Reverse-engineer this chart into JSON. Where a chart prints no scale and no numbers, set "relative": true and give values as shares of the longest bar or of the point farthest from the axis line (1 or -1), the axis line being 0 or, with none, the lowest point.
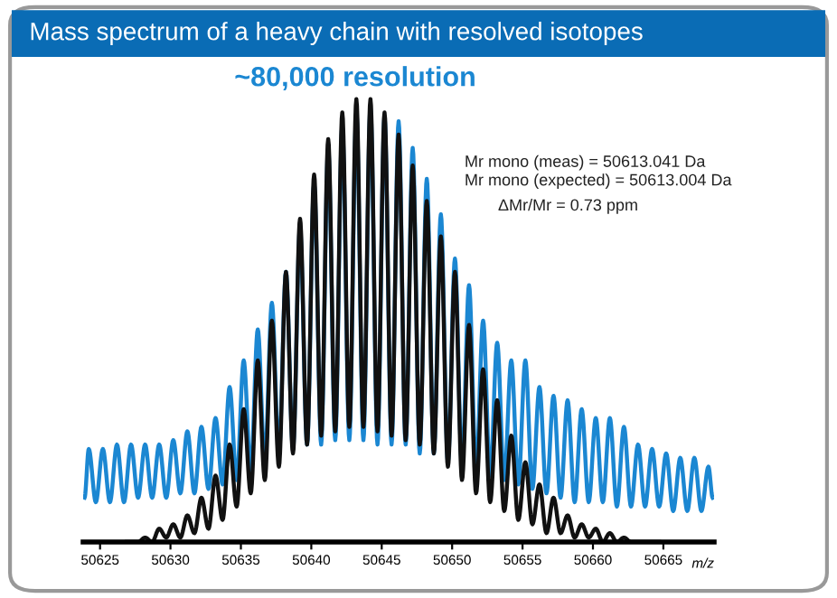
{
  "chart_data": {
    "type": "line",
    "relative": true,
    "title": "Mass spectrum of a heavy chain with resolved isotopes",
    "xlabel": "m/z",
    "annotations": [
      "~80,000 resolution",
      "Mr mono (meas) = 50613.041 Da",
      "Mr mono (expected) = 50613.004 Da",
      "ΔMr/Mr = 0.73 ppm"
    ],
    "xlim": [
      50623.8,
      50668.6
    ],
    "xticks": [
      50625,
      50630,
      50635,
      50640,
      50645,
      50650,
      50655,
      50660,
      50665
    ],
    "tick_labels": "x",
    "grid": false,
    "legend": false,
    "marker": "none",
    "line_style": "solid",
    "series": [
      {
        "color": "#1b87d2",
        "x": [
          50623.9,
          50624.2,
          50624.7,
          50625.2,
          50625.7,
          50626.2,
          50626.7,
          50627.2,
          50627.7,
          50628.2,
          50628.7,
          50629.2,
          50629.7,
          50630.2,
          50630.7,
          50631.2,
          50631.7,
          50632.2,
          50632.7,
          50633.2,
          50633.7,
          50634.2,
          50634.7,
          50635.2,
          50635.7,
          50636.2,
          50636.7,
          50637.2,
          50637.7,
          50638.2,
          50638.7,
          50639.2,
          50639.7,
          50640.2,
          50640.7,
          50641.2,
          50641.7,
          50642.2,
          50642.7,
          50643.2,
          50643.7,
          50644.2,
          50644.7,
          50645.2,
          50645.7,
          50646.2,
          50646.7,
          50647.2,
          50647.7,
          50648.2,
          50648.7,
          50649.2,
          50649.7,
          50650.2,
          50650.7,
          50651.2,
          50651.7,
          50652.2,
          50652.7,
          50653.2,
          50653.7,
          50654.2,
          50654.7,
          50655.2,
          50655.7,
          50656.2,
          50656.7,
          50657.2,
          50657.7,
          50658.2,
          50658.7,
          50659.2,
          50659.7,
          50660.2,
          50660.7,
          50661.2,
          50661.7,
          50662.2,
          50662.7,
          50663.2,
          50663.7,
          50664.2,
          50664.7,
          50665.2,
          50665.7,
          50666.2,
          50666.7,
          50667.2,
          50667.7,
          50668.2,
          50668.5
        ],
        "values": [
          0.1,
          0.21,
          0.09,
          0.21,
          0.09,
          0.22,
          0.09,
          0.22,
          0.1,
          0.22,
          0.1,
          0.22,
          0.1,
          0.23,
          0.11,
          0.25,
          0.11,
          0.26,
          0.12,
          0.28,
          0.13,
          0.35,
          0.14,
          0.41,
          0.16,
          0.48,
          0.18,
          0.54,
          0.2,
          0.61,
          0.21,
          0.71,
          0.22,
          0.81,
          0.22,
          0.89,
          0.23,
          0.94,
          0.23,
          0.97,
          0.23,
          0.98,
          0.22,
          0.96,
          0.22,
          0.95,
          0.22,
          0.89,
          0.2,
          0.82,
          0.2,
          0.74,
          0.18,
          0.64,
          0.17,
          0.58,
          0.16,
          0.5,
          0.15,
          0.45,
          0.14,
          0.41,
          0.13,
          0.41,
          0.12,
          0.35,
          0.11,
          0.33,
          0.1,
          0.32,
          0.09,
          0.3,
          0.09,
          0.28,
          0.09,
          0.28,
          0.08,
          0.26,
          0.08,
          0.22,
          0.08,
          0.21,
          0.08,
          0.2,
          0.07,
          0.19,
          0.07,
          0.19,
          0.07,
          0.17,
          0.1
        ]
      },
      {
        "color": "#111111",
        "x": [
          50626.9,
          50627.7,
          50628.2,
          50628.7,
          50629.2,
          50629.7,
          50630.2,
          50630.7,
          50631.2,
          50631.7,
          50632.2,
          50632.7,
          50633.2,
          50633.7,
          50634.2,
          50634.7,
          50635.2,
          50635.7,
          50636.2,
          50636.7,
          50637.2,
          50637.7,
          50638.2,
          50638.7,
          50639.2,
          50639.7,
          50640.2,
          50640.7,
          50641.2,
          50641.7,
          50642.2,
          50642.7,
          50643.2,
          50643.7,
          50644.2,
          50644.7,
          50645.2,
          50645.7,
          50646.2,
          50646.7,
          50647.2,
          50647.7,
          50648.2,
          50648.7,
          50649.2,
          50649.7,
          50650.2,
          50650.7,
          50651.2,
          50651.7,
          50652.2,
          50652.7,
          50653.2,
          50653.7,
          50654.2,
          50654.7,
          50655.2,
          50655.7,
          50656.2,
          50656.7,
          50657.2,
          50657.7,
          50658.2,
          50658.7,
          50659.2,
          50659.7,
          50660.2,
          50660.7,
          50661.2,
          50661.7,
          50662.2,
          50662.7,
          50664.7
        ],
        "values": [
          0,
          0,
          0.01,
          0,
          0.03,
          0.01,
          0.04,
          0.01,
          0.06,
          0.02,
          0.1,
          0.03,
          0.15,
          0.05,
          0.22,
          0.08,
          0.3,
          0.11,
          0.41,
          0.14,
          0.5,
          0.17,
          0.61,
          0.2,
          0.73,
          0.22,
          0.83,
          0.24,
          0.91,
          0.25,
          0.97,
          0.26,
          1.0,
          0.26,
          1.0,
          0.25,
          0.97,
          0.24,
          0.92,
          0.23,
          0.85,
          0.22,
          0.77,
          0.2,
          0.69,
          0.17,
          0.61,
          0.14,
          0.49,
          0.11,
          0.39,
          0.09,
          0.32,
          0.07,
          0.24,
          0.05,
          0.18,
          0.04,
          0.13,
          0.02,
          0.1,
          0.02,
          0.06,
          0.01,
          0.04,
          0.01,
          0.03,
          0,
          0.02,
          0,
          0.01,
          0,
          0
        ]
      }
    ]
  }
}
